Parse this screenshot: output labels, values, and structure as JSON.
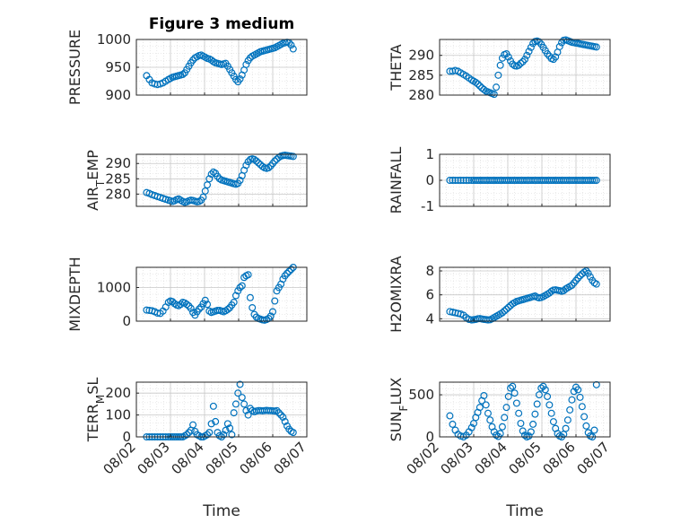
{
  "figure": {
    "title": "Figure 3 medium",
    "marker_color": "#0072BD",
    "axis_color": "#262626",
    "grid_color": "#d8d8d8"
  },
  "chart_data": [
    {
      "type": "scatter",
      "ylabel": "PRESSURE",
      "title": "Figure 3 medium",
      "ylim": [
        900,
        1000
      ],
      "yticks": [
        900,
        950,
        1000
      ],
      "xlim": [
        0,
        5
      ],
      "xticks": [
        "08/02",
        "08/03",
        "08/04",
        "08/05",
        "08/06",
        "08/07"
      ],
      "grid": true,
      "marker": "open-circle",
      "x": [
        0.3,
        0.38,
        0.46,
        0.54,
        0.62,
        0.7,
        0.78,
        0.86,
        0.94,
        1.0,
        1.06,
        1.12,
        1.18,
        1.24,
        1.3,
        1.36,
        1.42,
        1.48,
        1.54,
        1.6,
        1.66,
        1.72,
        1.78,
        1.84,
        1.9,
        1.96,
        2.02,
        2.08,
        2.14,
        2.2,
        2.26,
        2.32,
        2.38,
        2.44,
        2.5,
        2.56,
        2.62,
        2.68,
        2.74,
        2.8,
        2.86,
        2.92,
        2.98,
        3.04,
        3.1,
        3.16,
        3.22,
        3.28,
        3.34,
        3.4,
        3.46,
        3.52,
        3.58,
        3.64,
        3.7,
        3.76,
        3.82,
        3.88,
        3.94,
        4.0,
        4.06,
        4.12,
        4.18,
        4.24,
        4.3,
        4.36,
        4.42,
        4.48,
        4.54,
        4.6
      ],
      "y": [
        935,
        928,
        922,
        920,
        919,
        920,
        922,
        925,
        928,
        930,
        932,
        933,
        934,
        935,
        936,
        937,
        940,
        946,
        952,
        958,
        963,
        967,
        969,
        971,
        972,
        970,
        968,
        966,
        965,
        963,
        960,
        958,
        957,
        956,
        955,
        956,
        957,
        952,
        946,
        940,
        934,
        928,
        924,
        929,
        936,
        945,
        955,
        962,
        967,
        970,
        972,
        974,
        976,
        978,
        979,
        980,
        981,
        982,
        983,
        984,
        985,
        987,
        989,
        991,
        993,
        994,
        995,
        994,
        990,
        983
      ]
    },
    {
      "type": "scatter",
      "ylabel": "THETA",
      "ylim": [
        280,
        294
      ],
      "yticks": [
        280,
        285,
        290
      ],
      "xlim": [
        0,
        5
      ],
      "xticks": [
        "08/02",
        "08/03",
        "08/04",
        "08/05",
        "08/06",
        "08/07"
      ],
      "grid": true,
      "marker": "open-circle",
      "x": [
        0.3,
        0.38,
        0.46,
        0.54,
        0.62,
        0.7,
        0.78,
        0.86,
        0.94,
        1.0,
        1.06,
        1.12,
        1.18,
        1.24,
        1.3,
        1.36,
        1.42,
        1.48,
        1.54,
        1.6,
        1.66,
        1.72,
        1.78,
        1.84,
        1.9,
        1.96,
        2.02,
        2.08,
        2.14,
        2.2,
        2.26,
        2.32,
        2.38,
        2.44,
        2.5,
        2.56,
        2.62,
        2.68,
        2.74,
        2.8,
        2.86,
        2.92,
        2.98,
        3.04,
        3.1,
        3.16,
        3.22,
        3.28,
        3.34,
        3.4,
        3.46,
        3.52,
        3.58,
        3.64,
        3.7,
        3.76,
        3.82,
        3.88,
        3.94,
        4.0,
        4.06,
        4.12,
        4.18,
        4.24,
        4.3,
        4.36,
        4.42,
        4.48,
        4.54,
        4.6
      ],
      "y": [
        286,
        286,
        286.2,
        286,
        285.6,
        285.2,
        284.8,
        284.3,
        283.8,
        283.5,
        283.2,
        282.8,
        282.3,
        281.8,
        281.4,
        281.0,
        280.8,
        280.6,
        280.4,
        280.2,
        282,
        285,
        287.5,
        289.3,
        290.2,
        290.4,
        289.6,
        288.6,
        287.8,
        287.4,
        287.3,
        287.5,
        288,
        288.4,
        289,
        290,
        291,
        292,
        293,
        293.5,
        293.6,
        293.4,
        292.8,
        292.0,
        291.2,
        290.4,
        289.8,
        289.2,
        289.0,
        289.6,
        290.8,
        292.2,
        293.2,
        293.8,
        293.9,
        293.7,
        293.5,
        293.3,
        293.2,
        293.1,
        293.0,
        292.9,
        292.8,
        292.7,
        292.6,
        292.5,
        292.4,
        292.3,
        292.2,
        292.1
      ]
    },
    {
      "type": "scatter",
      "ylabel": "AIR_TEMP",
      "ylim": [
        276,
        293
      ],
      "yticks": [
        280,
        285,
        290
      ],
      "xlim": [
        0,
        5
      ],
      "xticks": [
        "08/02",
        "08/03",
        "08/04",
        "08/05",
        "08/06",
        "08/07"
      ],
      "grid": true,
      "marker": "open-circle",
      "x": [
        0.3,
        0.38,
        0.46,
        0.54,
        0.62,
        0.7,
        0.78,
        0.86,
        0.94,
        1.0,
        1.06,
        1.12,
        1.18,
        1.24,
        1.3,
        1.36,
        1.42,
        1.48,
        1.54,
        1.6,
        1.66,
        1.72,
        1.78,
        1.84,
        1.9,
        1.96,
        2.02,
        2.08,
        2.14,
        2.2,
        2.26,
        2.32,
        2.38,
        2.44,
        2.5,
        2.56,
        2.62,
        2.68,
        2.74,
        2.8,
        2.86,
        2.92,
        2.98,
        3.04,
        3.1,
        3.16,
        3.22,
        3.28,
        3.34,
        3.4,
        3.46,
        3.52,
        3.58,
        3.64,
        3.7,
        3.76,
        3.82,
        3.88,
        3.94,
        4.0,
        4.06,
        4.12,
        4.18,
        4.24,
        4.3,
        4.36,
        4.42,
        4.48,
        4.54,
        4.6
      ],
      "y": [
        280.5,
        280.2,
        279.8,
        279.5,
        279.2,
        278.9,
        278.6,
        278.3,
        278.0,
        277.8,
        277.6,
        277.8,
        278.2,
        278.4,
        278.0,
        277.6,
        277.3,
        277.5,
        277.8,
        278.0,
        277.9,
        277.7,
        277.5,
        277.6,
        278.0,
        279,
        281,
        283,
        285,
        286.5,
        287.2,
        286.8,
        285.8,
        285,
        284.6,
        284.4,
        284.2,
        284,
        283.8,
        283.6,
        283.4,
        283.2,
        283.5,
        284.5,
        286,
        287.8,
        289.4,
        290.6,
        291.3,
        291.5,
        291.3,
        290.8,
        290.2,
        289.6,
        289.0,
        288.6,
        288.4,
        288.6,
        289.2,
        290,
        290.8,
        291.4,
        292.0,
        292.4,
        292.6,
        292.7,
        292.6,
        292.5,
        292.4,
        292.3
      ]
    },
    {
      "type": "scatter",
      "ylabel": "RAINFALL",
      "ylim": [
        -1,
        1
      ],
      "yticks": [
        -1,
        0,
        1
      ],
      "xlim": [
        0,
        5
      ],
      "xticks": [
        "08/02",
        "08/03",
        "08/04",
        "08/05",
        "08/06",
        "08/07"
      ],
      "grid": true,
      "marker": "open-circle",
      "x": [
        0.3,
        0.38,
        0.46,
        0.54,
        0.62,
        0.7,
        0.78,
        0.86,
        0.94,
        1.0,
        1.06,
        1.12,
        1.18,
        1.24,
        1.3,
        1.36,
        1.42,
        1.48,
        1.54,
        1.6,
        1.66,
        1.72,
        1.78,
        1.84,
        1.9,
        1.96,
        2.02,
        2.08,
        2.14,
        2.2,
        2.26,
        2.32,
        2.38,
        2.44,
        2.5,
        2.56,
        2.62,
        2.68,
        2.74,
        2.8,
        2.86,
        2.92,
        2.98,
        3.04,
        3.1,
        3.16,
        3.22,
        3.28,
        3.34,
        3.4,
        3.46,
        3.52,
        3.58,
        3.64,
        3.7,
        3.76,
        3.82,
        3.88,
        3.94,
        4.0,
        4.06,
        4.12,
        4.18,
        4.24,
        4.3,
        4.36,
        4.42,
        4.48,
        4.54,
        4.6
      ],
      "y": [
        0,
        0,
        0,
        0,
        0,
        0,
        0,
        0,
        0,
        0,
        0,
        0,
        0,
        0,
        0,
        0,
        0,
        0,
        0,
        0,
        0,
        0,
        0,
        0,
        0,
        0,
        0,
        0,
        0,
        0,
        0,
        0,
        0,
        0,
        0,
        0,
        0,
        0,
        0,
        0,
        0,
        0,
        0,
        0,
        0,
        0,
        0,
        0,
        0,
        0,
        0,
        0,
        0,
        0,
        0,
        0,
        0,
        0,
        0,
        0,
        0,
        0,
        0,
        0,
        0,
        0,
        0,
        0,
        0,
        0
      ]
    },
    {
      "type": "scatter",
      "ylabel": "MIXDEPTH",
      "ylim": [
        0,
        1600
      ],
      "yticks": [
        0,
        1000
      ],
      "xlim": [
        0,
        5
      ],
      "xticks": [
        "08/02",
        "08/03",
        "08/04",
        "08/05",
        "08/06",
        "08/07"
      ],
      "grid": true,
      "marker": "open-circle",
      "x": [
        0.3,
        0.38,
        0.46,
        0.54,
        0.62,
        0.7,
        0.78,
        0.86,
        0.94,
        1.0,
        1.06,
        1.12,
        1.18,
        1.24,
        1.3,
        1.36,
        1.42,
        1.48,
        1.54,
        1.6,
        1.66,
        1.72,
        1.78,
        1.84,
        1.9,
        1.96,
        2.02,
        2.08,
        2.14,
        2.2,
        2.26,
        2.32,
        2.38,
        2.44,
        2.5,
        2.56,
        2.62,
        2.68,
        2.74,
        2.8,
        2.86,
        2.92,
        2.98,
        3.04,
        3.1,
        3.16,
        3.22,
        3.28,
        3.34,
        3.4,
        3.46,
        3.52,
        3.58,
        3.64,
        3.7,
        3.76,
        3.82,
        3.88,
        3.94,
        4.0,
        4.06,
        4.12,
        4.18,
        4.24,
        4.3,
        4.36,
        4.42,
        4.48,
        4.54,
        4.6
      ],
      "y": [
        330,
        320,
        310,
        280,
        240,
        230,
        300,
        420,
        560,
        600,
        580,
        520,
        480,
        460,
        500,
        560,
        540,
        500,
        450,
        380,
        260,
        180,
        280,
        360,
        420,
        520,
        620,
        500,
        300,
        260,
        280,
        300,
        320,
        320,
        300,
        280,
        310,
        350,
        400,
        480,
        560,
        760,
        900,
        1000,
        1050,
        1300,
        1350,
        1380,
        700,
        400,
        200,
        120,
        80,
        60,
        40,
        30,
        50,
        80,
        150,
        280,
        600,
        900,
        1000,
        1100,
        1250,
        1350,
        1420,
        1480,
        1540,
        1600
      ]
    },
    {
      "type": "scatter",
      "ylabel": "H2OMIXRA",
      "ylim": [
        3.8,
        8.3
      ],
      "yticks": [
        4,
        6,
        8
      ],
      "xlim": [
        0,
        5
      ],
      "xticks": [
        "08/02",
        "08/03",
        "08/04",
        "08/05",
        "08/06",
        "08/07"
      ],
      "grid": true,
      "marker": "open-circle",
      "x": [
        0.3,
        0.38,
        0.46,
        0.54,
        0.62,
        0.7,
        0.78,
        0.86,
        0.94,
        1.0,
        1.06,
        1.12,
        1.18,
        1.24,
        1.3,
        1.36,
        1.42,
        1.48,
        1.54,
        1.6,
        1.66,
        1.72,
        1.78,
        1.84,
        1.9,
        1.96,
        2.02,
        2.08,
        2.14,
        2.2,
        2.26,
        2.32,
        2.38,
        2.44,
        2.5,
        2.56,
        2.62,
        2.68,
        2.74,
        2.8,
        2.86,
        2.92,
        2.98,
        3.04,
        3.1,
        3.16,
        3.22,
        3.28,
        3.34,
        3.4,
        3.46,
        3.52,
        3.58,
        3.64,
        3.7,
        3.76,
        3.82,
        3.88,
        3.94,
        4.0,
        4.06,
        4.12,
        4.18,
        4.24,
        4.3,
        4.36,
        4.42,
        4.48,
        4.54,
        4.6
      ],
      "y": [
        4.6,
        4.55,
        4.5,
        4.45,
        4.4,
        4.3,
        4.1,
        3.95,
        3.9,
        3.92,
        3.95,
        4.0,
        4.02,
        3.98,
        3.95,
        3.93,
        3.9,
        3.92,
        4.0,
        4.1,
        4.2,
        4.3,
        4.4,
        4.5,
        4.65,
        4.8,
        4.95,
        5.1,
        5.25,
        5.35,
        5.45,
        5.5,
        5.55,
        5.6,
        5.65,
        5.7,
        5.75,
        5.8,
        5.85,
        5.9,
        5.8,
        5.75,
        5.78,
        5.85,
        5.95,
        6.05,
        6.15,
        6.3,
        6.4,
        6.42,
        6.38,
        6.35,
        6.3,
        6.35,
        6.5,
        6.6,
        6.7,
        6.8,
        7.0,
        7.2,
        7.4,
        7.6,
        7.75,
        7.9,
        8.0,
        7.8,
        7.5,
        7.2,
        7.0,
        6.9
      ]
    },
    {
      "type": "scatter",
      "ylabel": "TERR_MSL",
      "ylim": [
        0,
        250
      ],
      "yticks": [
        0,
        100,
        200
      ],
      "xlim": [
        0,
        5
      ],
      "xticks": [
        "08/02",
        "08/03",
        "08/04",
        "08/05",
        "08/06",
        "08/07"
      ],
      "grid": true,
      "marker": "open-circle",
      "x": [
        0.3,
        0.38,
        0.46,
        0.54,
        0.62,
        0.7,
        0.78,
        0.86,
        0.94,
        1.0,
        1.06,
        1.12,
        1.18,
        1.24,
        1.3,
        1.36,
        1.42,
        1.48,
        1.54,
        1.6,
        1.66,
        1.72,
        1.78,
        1.84,
        1.9,
        1.96,
        2.02,
        2.08,
        2.14,
        2.2,
        2.26,
        2.32,
        2.38,
        2.44,
        2.5,
        2.56,
        2.62,
        2.68,
        2.74,
        2.8,
        2.86,
        2.92,
        2.98,
        3.04,
        3.1,
        3.16,
        3.22,
        3.28,
        3.34,
        3.4,
        3.46,
        3.52,
        3.58,
        3.64,
        3.7,
        3.76,
        3.82,
        3.88,
        3.94,
        4.0,
        4.06,
        4.12,
        4.18,
        4.24,
        4.3,
        4.36,
        4.42,
        4.48,
        4.54,
        4.6
      ],
      "y": [
        0,
        0,
        0,
        0,
        0,
        0,
        0,
        0,
        0,
        0,
        0,
        0,
        0,
        0,
        0,
        0,
        5,
        10,
        20,
        30,
        55,
        25,
        10,
        5,
        0,
        0,
        5,
        10,
        20,
        60,
        140,
        70,
        20,
        5,
        0,
        10,
        30,
        60,
        40,
        10,
        110,
        150,
        200,
        240,
        180,
        150,
        120,
        100,
        130,
        120,
        115,
        118,
        120,
        120,
        119,
        120,
        121,
        120,
        120,
        119,
        118,
        120,
        110,
        100,
        90,
        70,
        50,
        35,
        25,
        20
      ]
    },
    {
      "type": "scatter",
      "ylabel": "SUN_FLUX",
      "ylim": [
        0,
        650
      ],
      "yticks": [
        0,
        500
      ],
      "xlim": [
        0,
        5
      ],
      "xticks": [
        "08/02",
        "08/03",
        "08/04",
        "08/05",
        "08/06",
        "08/07"
      ],
      "grid": true,
      "marker": "open-circle",
      "x": [
        0.3,
        0.38,
        0.46,
        0.54,
        0.62,
        0.7,
        0.78,
        0.86,
        0.94,
        1.0,
        1.06,
        1.12,
        1.18,
        1.24,
        1.3,
        1.36,
        1.42,
        1.48,
        1.54,
        1.6,
        1.66,
        1.72,
        1.78,
        1.84,
        1.9,
        1.96,
        2.02,
        2.08,
        2.14,
        2.2,
        2.26,
        2.32,
        2.38,
        2.44,
        2.5,
        2.56,
        2.62,
        2.68,
        2.74,
        2.8,
        2.86,
        2.92,
        2.98,
        3.04,
        3.1,
        3.16,
        3.22,
        3.28,
        3.34,
        3.4,
        3.46,
        3.52,
        3.58,
        3.64,
        3.7,
        3.76,
        3.82,
        3.88,
        3.94,
        4.0,
        4.06,
        4.12,
        4.18,
        4.24,
        4.3,
        4.36,
        4.42,
        4.48,
        4.54,
        4.6
      ],
      "y": [
        250,
        150,
        80,
        30,
        10,
        0,
        20,
        60,
        110,
        160,
        230,
        290,
        350,
        430,
        490,
        380,
        280,
        200,
        120,
        60,
        20,
        5,
        40,
        120,
        230,
        350,
        480,
        580,
        600,
        520,
        400,
        280,
        160,
        70,
        20,
        0,
        10,
        60,
        150,
        270,
        390,
        500,
        580,
        600,
        560,
        480,
        380,
        280,
        180,
        100,
        40,
        10,
        0,
        30,
        100,
        200,
        320,
        440,
        540,
        590,
        560,
        470,
        360,
        240,
        130,
        50,
        10,
        0,
        80,
        620
      ]
    }
  ],
  "shared_xlabel": "Time"
}
